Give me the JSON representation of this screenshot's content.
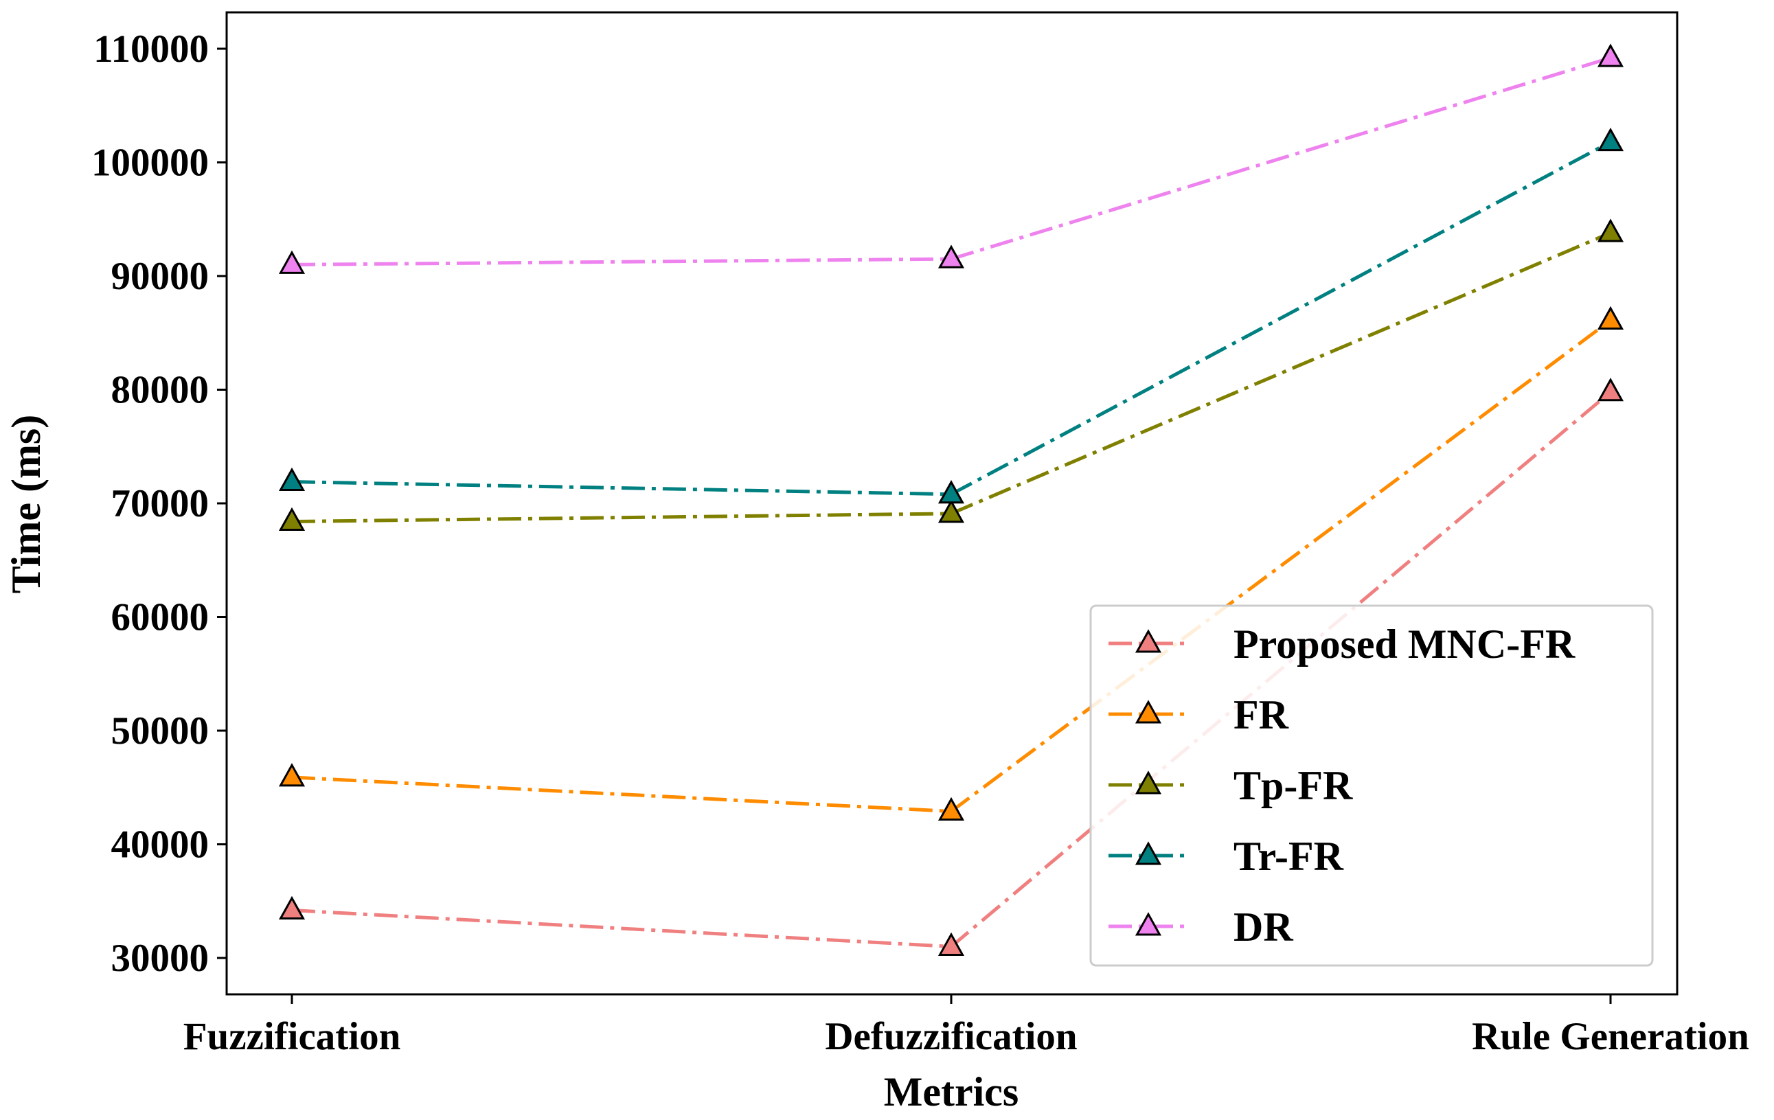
{
  "chart_data": {
    "type": "line",
    "title": "",
    "xlabel": "Metrics",
    "ylabel": "Time (ms)",
    "categories": [
      "Fuzzification",
      "Defuzzification",
      "Rule Generation"
    ],
    "ylim": [
      26800,
      113200
    ],
    "yticks": [
      30000,
      40000,
      50000,
      60000,
      70000,
      80000,
      90000,
      100000,
      110000
    ],
    "yticklabels": [
      "30000",
      "40000",
      "50000",
      "60000",
      "70000",
      "80000",
      "90000",
      "100000",
      "110000"
    ],
    "grid": false,
    "legend_position": "lower-right",
    "marker": "triangle-up",
    "line_style": "dash-dot",
    "series": [
      {
        "name": "Proposed  MNC-FR",
        "color": "#f08080",
        "values": [
          34200,
          31000,
          79800
        ]
      },
      {
        "name": "FR",
        "color": "#ff8c00",
        "values": [
          45900,
          42900,
          86100
        ]
      },
      {
        "name": "Tp-FR",
        "color": "#808000",
        "values": [
          68400,
          69100,
          93800
        ]
      },
      {
        "name": "Tr-FR",
        "color": "#008080",
        "values": [
          71900,
          70800,
          101800
        ]
      },
      {
        "name": "DR",
        "color": "#ee82ee",
        "values": [
          91000,
          91500,
          109200
        ]
      }
    ]
  }
}
